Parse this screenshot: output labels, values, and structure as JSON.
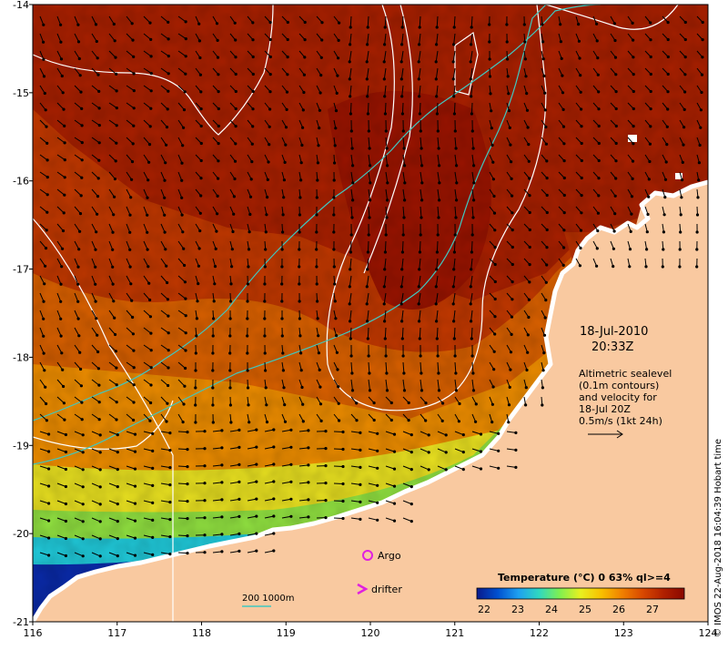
{
  "map": {
    "lon_ticks": [
      "116",
      "117",
      "118",
      "119",
      "120",
      "121",
      "122",
      "123",
      "124"
    ],
    "lat_ticks": [
      "-14",
      "-15",
      "-16",
      "-17",
      "-18",
      "-19",
      "-20",
      "-21"
    ],
    "lon_range": [
      116,
      124
    ],
    "lat_range": [
      -14,
      -21
    ]
  },
  "annotation": {
    "date": "18-Jul-2010",
    "time": "20:33Z",
    "line1": "Altimetric sealevel",
    "line2": "(0.1m contours)",
    "line3": "and velocity for",
    "line4": "18-Jul 20Z",
    "line5": "0.5m/s (1kt 24h)"
  },
  "legend": {
    "argo_label": "Argo",
    "drifter_label": "drifter",
    "isobath_label": "200  1000m"
  },
  "colorbar": {
    "title": "Temperature (°C) 0 63% ql>=4",
    "ticks": [
      "22",
      "23",
      "24",
      "25",
      "26",
      "27"
    ],
    "colors": [
      "#0a1a8c",
      "#0050d0",
      "#1ea0f0",
      "#30d8c0",
      "#80f050",
      "#e8f020",
      "#f8c000",
      "#f08000",
      "#d84800",
      "#b02000",
      "#8a0800"
    ]
  },
  "credit": "© IMOS 22-Aug-2018 16:04:39 Hobart time",
  "colors": {
    "land": "#f9c9a0",
    "contour": "#ffffff",
    "isobath": "#40c8c0",
    "argo": "#e020e0"
  }
}
